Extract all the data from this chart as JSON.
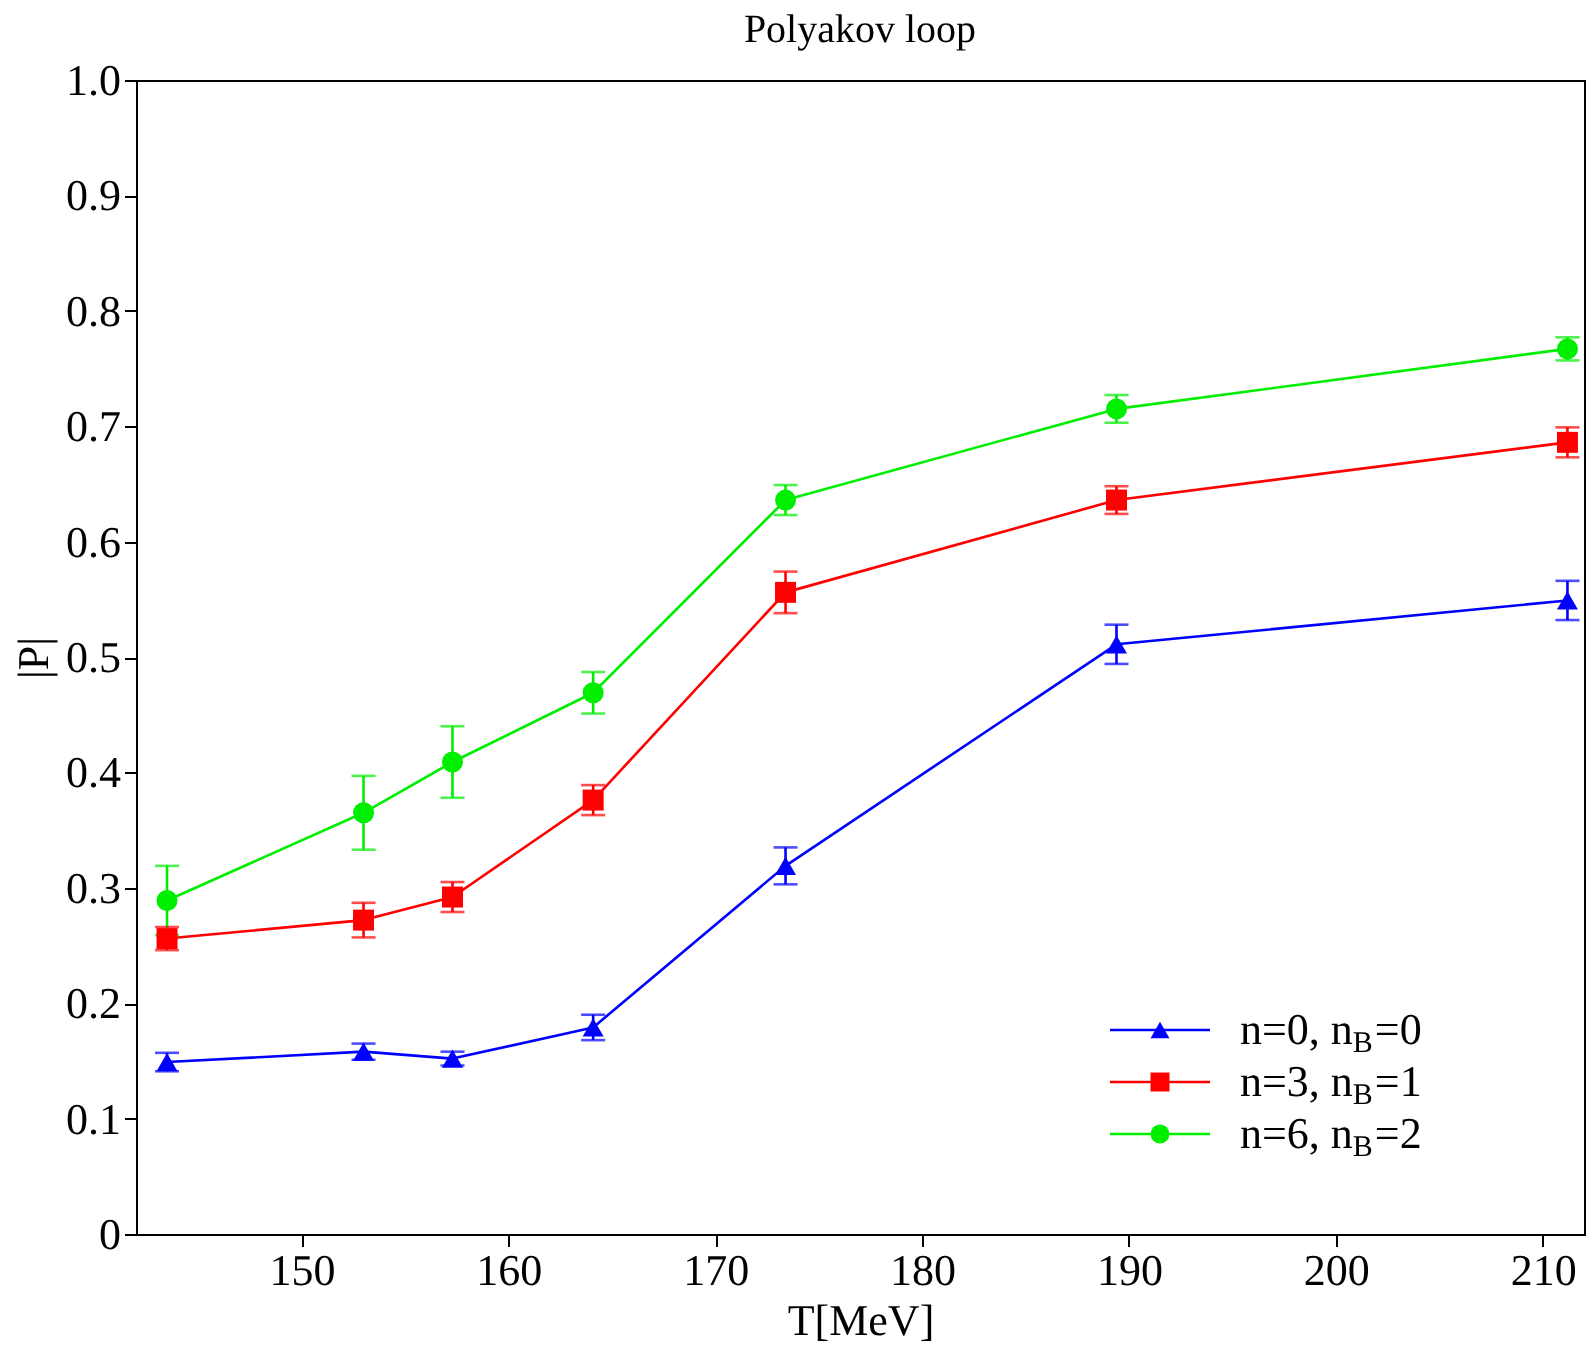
{
  "chart_data": {
    "type": "line",
    "title": "Polyakov loop",
    "xlabel": "T[MeV]",
    "ylabel": "|P|",
    "x": [
      143.5,
      153.0,
      157.3,
      164.1,
      173.4,
      189.4,
      211.2
    ],
    "series": [
      {
        "name": "n=0, n$_{B}$=0",
        "color": "#0000ff",
        "marker": "triangle",
        "values": [
          0.149,
          0.158,
          0.152,
          0.179,
          0.319,
          0.511,
          0.549
        ],
        "errors": [
          0.008,
          0.007,
          0.006,
          0.011,
          0.016,
          0.017,
          0.017
        ]
      },
      {
        "name": "n=3, n$_{B}$=1",
        "color": "#ff0000",
        "marker": "square",
        "values": [
          0.256,
          0.272,
          0.292,
          0.376,
          0.556,
          0.636,
          0.686
        ],
        "errors": [
          0.01,
          0.015,
          0.013,
          0.013,
          0.018,
          0.012,
          0.013
        ]
      },
      {
        "name": "n=6, n$_{B}$=2",
        "color": "#00ee00",
        "marker": "circle",
        "values": [
          0.289,
          0.365,
          0.409,
          0.469,
          0.636,
          0.715,
          0.767
        ],
        "errors": [
          0.03,
          0.032,
          0.031,
          0.018,
          0.013,
          0.012,
          0.01
        ]
      }
    ],
    "xlim": [
      142,
      212
    ],
    "xticks": [
      150,
      160,
      170,
      180,
      190,
      200,
      210
    ],
    "ylim": [
      0,
      1
    ],
    "yticks": [
      0,
      0.1,
      0.2,
      0.3,
      0.4,
      0.5,
      0.6,
      0.7,
      0.8,
      0.9,
      {
        "value": 1,
        "label": "1.0"
      }
    ],
    "grid": false,
    "legend": "bottom right",
    "line_style": "solid"
  }
}
